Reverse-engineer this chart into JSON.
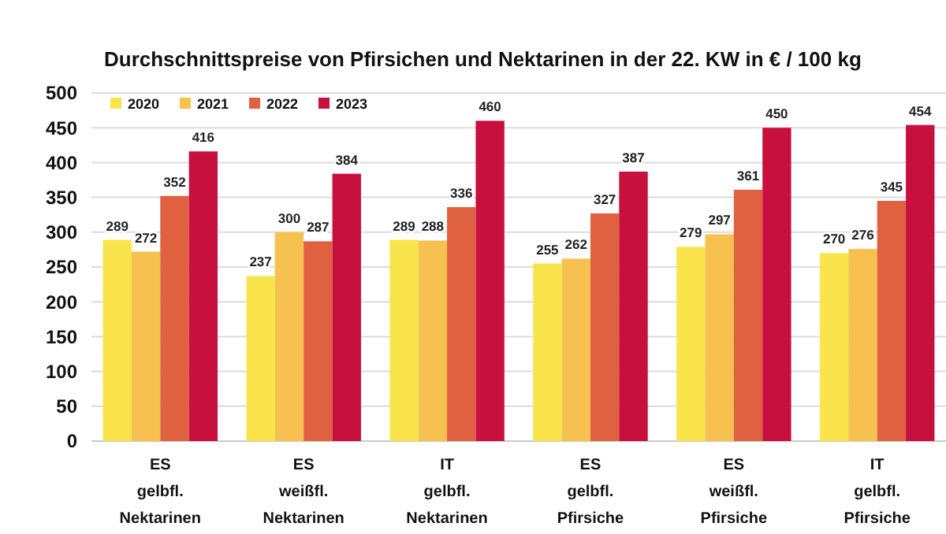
{
  "chart_data": {
    "type": "bar",
    "title": "Durchschnittspreise von Pfirsichen und Nektarinen in der 22. KW in € / 100 kg",
    "categories": [
      "ES\ngelbfl.\nNektarinen",
      "ES\nweißfl.\nNektarinen",
      "IT\ngelbfl.\nNektarinen",
      "ES\ngelbfl.\nPfirsiche",
      "ES\nweißfl.\nPfirsiche",
      "IT\ngelbfl.\nPfirsiche"
    ],
    "series": [
      {
        "name": "2020",
        "color": "#f9e44c",
        "values": [
          289,
          237,
          289,
          255,
          279,
          270
        ]
      },
      {
        "name": "2021",
        "color": "#f6c14e",
        "values": [
          272,
          300,
          288,
          262,
          297,
          276
        ]
      },
      {
        "name": "2022",
        "color": "#df6140",
        "values": [
          352,
          287,
          336,
          327,
          361,
          345
        ]
      },
      {
        "name": "2023",
        "color": "#c8103f",
        "values": [
          416,
          384,
          460,
          387,
          450,
          454
        ]
      }
    ],
    "ylim": [
      0,
      500
    ],
    "yticks": [
      0,
      50,
      100,
      150,
      200,
      250,
      300,
      350,
      400,
      450,
      500
    ],
    "grid": "y",
    "legend": "top left",
    "data_labels": true
  }
}
